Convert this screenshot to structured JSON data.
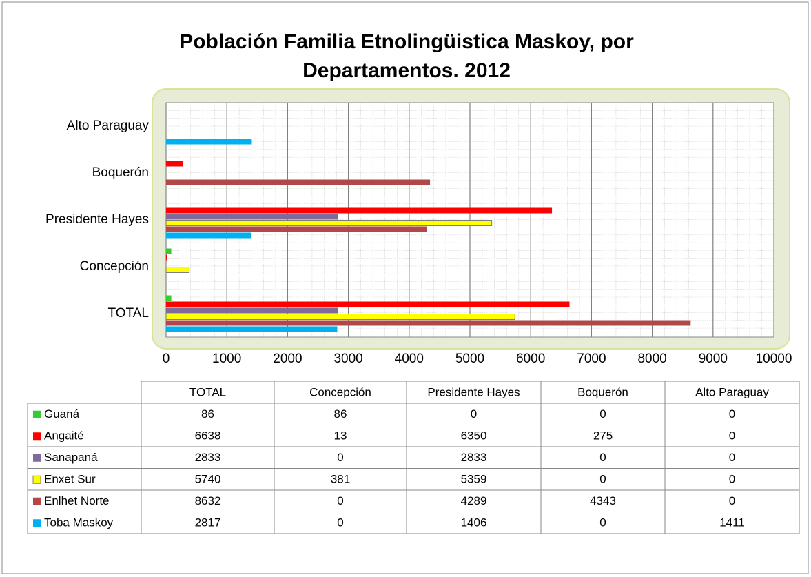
{
  "chart_data": {
    "type": "bar",
    "orientation": "horizontal",
    "title": "Población Familia Etnolingüistica Maskoy, por Departamentos. 2012",
    "categories": [
      "TOTAL",
      "Concepción",
      "Presidente Hayes",
      "Boquerón",
      "Alto Paraguay"
    ],
    "series": [
      {
        "name": "Guaná",
        "color": "#33cc33",
        "values": [
          86,
          86,
          0,
          0,
          0
        ]
      },
      {
        "name": "Angaité",
        "color": "#ff0000",
        "values": [
          6638,
          13,
          6350,
          275,
          0
        ]
      },
      {
        "name": "Sanapaná",
        "color": "#7f6a9e",
        "values": [
          2833,
          0,
          2833,
          0,
          0
        ]
      },
      {
        "name": "Enxet Sur",
        "color": "#ffff00",
        "values": [
          5740,
          381,
          5359,
          0,
          0
        ]
      },
      {
        "name": "Enlhet Norte",
        "color": "#b0484a",
        "values": [
          8632,
          0,
          4289,
          4343,
          0
        ]
      },
      {
        "name": "Toba Maskoy",
        "color": "#00b0f0",
        "values": [
          2817,
          0,
          1406,
          0,
          1411
        ]
      }
    ],
    "xlim": [
      0,
      10000
    ],
    "xticks": [
      0,
      1000,
      2000,
      3000,
      4000,
      5000,
      6000,
      7000,
      8000,
      9000,
      10000
    ],
    "grid": true
  }
}
